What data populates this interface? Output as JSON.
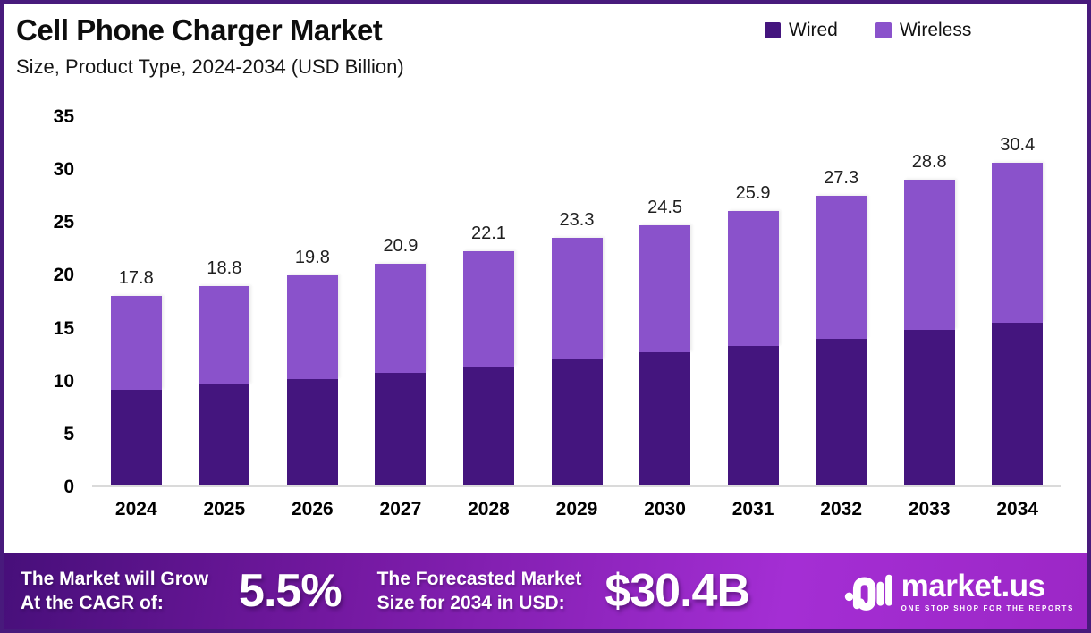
{
  "header": {
    "title": "Cell Phone Charger Market",
    "subtitle": "Size, Product Type, 2024-2034 (USD Billion)"
  },
  "chart_data": {
    "type": "bar",
    "stacked": true,
    "title": "Cell Phone Charger Market Size, Product Type, 2024-2034 (USD Billion)",
    "categories": [
      "2024",
      "2025",
      "2026",
      "2027",
      "2028",
      "2029",
      "2030",
      "2031",
      "2032",
      "2033",
      "2034"
    ],
    "series": [
      {
        "name": "Wired",
        "color": "#44157e",
        "values": [
          9.0,
          9.5,
          10.0,
          10.6,
          11.2,
          11.8,
          12.5,
          13.1,
          13.8,
          14.6,
          15.3
        ]
      },
      {
        "name": "Wireless",
        "color": "#8a52cb",
        "values": [
          8.8,
          9.3,
          9.8,
          10.3,
          10.9,
          11.5,
          12.0,
          12.8,
          13.5,
          14.2,
          15.1
        ]
      }
    ],
    "totals": [
      "17.8",
      "18.8",
      "19.8",
      "20.9",
      "22.1",
      "23.3",
      "24.5",
      "25.9",
      "27.3",
      "28.8",
      "30.4"
    ],
    "ylim": [
      0,
      35
    ],
    "yticks": [
      0,
      5,
      10,
      15,
      20,
      25,
      30,
      35
    ],
    "grid": false,
    "legend_position": "top-right",
    "value_labels": "totals shown above each stacked bar"
  },
  "footer": {
    "cagr_line1": "The Market will Grow",
    "cagr_line2": "At the CAGR of:",
    "cagr_value": "5.5%",
    "forecast_line1": "The Forecasted Market",
    "forecast_line2": "Size for 2034 in USD:",
    "forecast_value": "$30.4B",
    "brand": {
      "name": "market.us",
      "tagline": "ONE STOP SHOP FOR THE REPORTS"
    }
  },
  "colors": {
    "frame_border": "#481a7c",
    "wired": "#44157e",
    "wireless": "#8a52cb",
    "baseline": "#dadada",
    "footer_gradient_start": "#470f7a",
    "footer_gradient_end": "#a42ed4"
  }
}
